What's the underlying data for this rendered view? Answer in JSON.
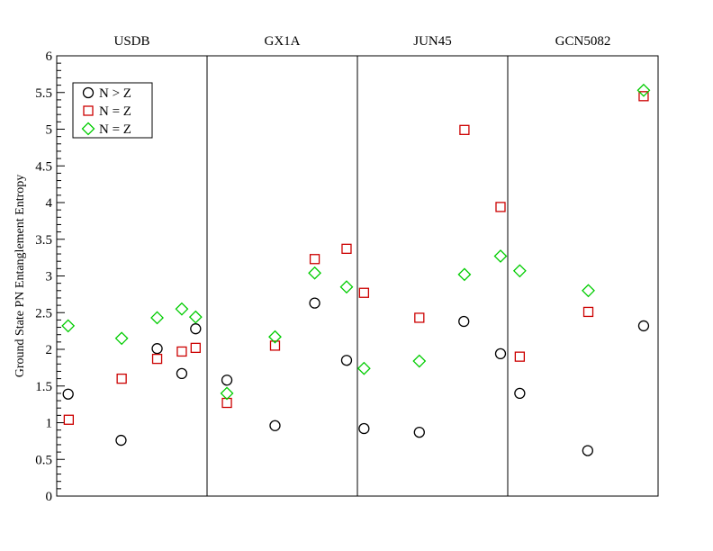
{
  "chart_data": {
    "type": "scatter",
    "title": "",
    "xlabel": "",
    "ylabel": "Ground State PN Entanglement Entropy",
    "ylim": [
      0,
      6
    ],
    "yticks": [
      "0",
      "0.5",
      "1",
      "1.5",
      "2",
      "2.5",
      "3",
      "3.5",
      "4",
      "4.5",
      "5",
      "5.5",
      "6"
    ],
    "xlim": [
      0,
      100
    ],
    "grid": false,
    "legend_position": "top-left",
    "panels": [
      "USDB",
      "GX1A",
      "JUN45",
      "GCN5082"
    ],
    "panel_boundaries": [
      25,
      50,
      75
    ],
    "series": [
      {
        "name": "N > Z",
        "marker": "circle",
        "color": "#000000",
        "points": [
          {
            "x": 1.9,
            "y": 1.39
          },
          {
            "x": 10.7,
            "y": 0.76
          },
          {
            "x": 16.7,
            "y": 2.01
          },
          {
            "x": 20.8,
            "y": 1.67
          },
          {
            "x": 23.1,
            "y": 2.28
          },
          {
            "x": 28.3,
            "y": 1.58
          },
          {
            "x": 36.3,
            "y": 0.96
          },
          {
            "x": 42.9,
            "y": 2.63
          },
          {
            "x": 48.2,
            "y": 1.85
          },
          {
            "x": 51.1,
            "y": 0.92
          },
          {
            "x": 60.3,
            "y": 0.87
          },
          {
            "x": 67.7,
            "y": 2.38
          },
          {
            "x": 73.8,
            "y": 1.94
          },
          {
            "x": 77.0,
            "y": 1.4
          },
          {
            "x": 88.3,
            "y": 0.62
          },
          {
            "x": 97.6,
            "y": 2.32
          }
        ]
      },
      {
        "name": "N = Z",
        "marker": "square",
        "color": "#cc0000",
        "points": [
          {
            "x": 2.0,
            "y": 1.04
          },
          {
            "x": 10.8,
            "y": 1.6
          },
          {
            "x": 16.7,
            "y": 1.87
          },
          {
            "x": 20.8,
            "y": 1.97
          },
          {
            "x": 23.1,
            "y": 2.02
          },
          {
            "x": 28.3,
            "y": 1.27
          },
          {
            "x": 36.3,
            "y": 2.05
          },
          {
            "x": 42.9,
            "y": 3.23
          },
          {
            "x": 48.2,
            "y": 3.37
          },
          {
            "x": 51.1,
            "y": 2.77
          },
          {
            "x": 60.3,
            "y": 2.43
          },
          {
            "x": 67.8,
            "y": 4.99
          },
          {
            "x": 73.8,
            "y": 3.94
          },
          {
            "x": 77.0,
            "y": 1.9
          },
          {
            "x": 88.4,
            "y": 2.51
          },
          {
            "x": 97.6,
            "y": 5.45
          }
        ]
      },
      {
        "name": "N = Z",
        "marker": "diamond",
        "color": "#00cc00",
        "points": [
          {
            "x": 1.9,
            "y": 2.32
          },
          {
            "x": 10.8,
            "y": 2.15
          },
          {
            "x": 16.7,
            "y": 2.43
          },
          {
            "x": 20.8,
            "y": 2.55
          },
          {
            "x": 23.1,
            "y": 2.44
          },
          {
            "x": 28.3,
            "y": 1.4
          },
          {
            "x": 36.3,
            "y": 2.17
          },
          {
            "x": 42.9,
            "y": 3.04
          },
          {
            "x": 48.2,
            "y": 2.85
          },
          {
            "x": 51.1,
            "y": 1.74
          },
          {
            "x": 60.3,
            "y": 1.84
          },
          {
            "x": 67.8,
            "y": 3.02
          },
          {
            "x": 73.8,
            "y": 3.27
          },
          {
            "x": 77.0,
            "y": 3.07
          },
          {
            "x": 88.4,
            "y": 2.8
          },
          {
            "x": 97.6,
            "y": 5.53
          }
        ]
      }
    ]
  }
}
